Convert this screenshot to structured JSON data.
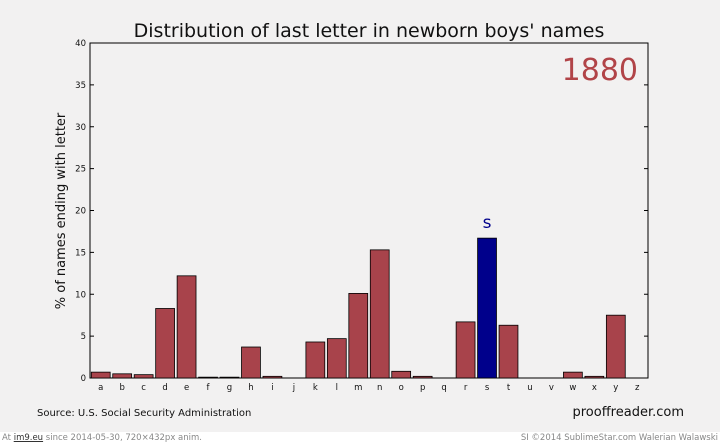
{
  "chart_data": {
    "type": "bar",
    "title": "Distribution of last letter in newborn boys' names",
    "year": "1880",
    "xlabel": "",
    "ylabel": "% of names ending with letter",
    "ylim": [
      0,
      40
    ],
    "yticks": [
      0,
      5,
      10,
      15,
      20,
      25,
      30,
      35,
      40
    ],
    "categories": [
      "a",
      "b",
      "c",
      "d",
      "e",
      "f",
      "g",
      "h",
      "i",
      "j",
      "k",
      "l",
      "m",
      "n",
      "o",
      "p",
      "q",
      "r",
      "s",
      "t",
      "u",
      "v",
      "w",
      "x",
      "y",
      "z"
    ],
    "values": [
      0.7,
      0.5,
      0.4,
      8.3,
      12.2,
      0.1,
      0.1,
      3.7,
      0.2,
      0.0,
      4.3,
      4.7,
      10.1,
      15.3,
      0.8,
      0.2,
      0.0,
      6.7,
      16.7,
      6.3,
      0.0,
      0.0,
      0.7,
      0.2,
      7.5,
      0.0
    ],
    "highlight": {
      "category": "s",
      "label": "s"
    },
    "colors": {
      "bar": "#a8434b",
      "highlight": "#00008b",
      "year": "#b14448",
      "background": "#f2f1f1"
    },
    "source": "Source: U.S. Social Security Administration",
    "site": "prooffreader.com"
  },
  "footer": {
    "prefix": "At ",
    "link": "im9.eu",
    "suffix": " since 2014-05-30, 720×432px anim.",
    "right": "SI ©2014 SublimeStar.com Walerian Walawski"
  }
}
